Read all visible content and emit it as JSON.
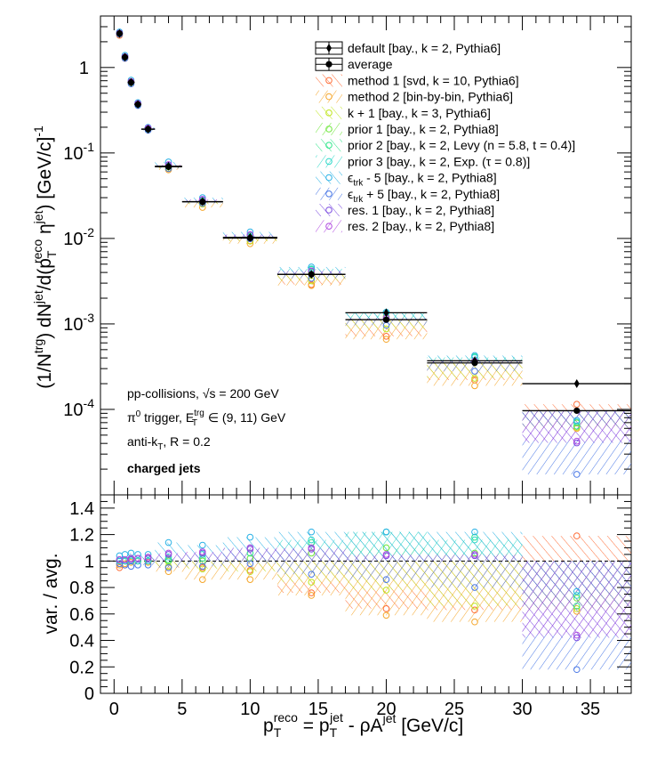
{
  "chart_data": [
    {
      "type": "scatter",
      "panel": "top",
      "y_scale": "log",
      "xlim": [
        -1,
        38
      ],
      "ylim": [
        1e-05,
        4
      ],
      "y_ticks": [
        {
          "v": 1,
          "base": "1",
          "exp": ""
        },
        {
          "v": 0.1,
          "base": "10",
          "exp": "-1"
        },
        {
          "v": 0.01,
          "base": "10",
          "exp": "-2"
        },
        {
          "v": 0.001,
          "base": "10",
          "exp": "-3"
        },
        {
          "v": 0.0001,
          "base": "10",
          "exp": "-4"
        }
      ],
      "ylabel": {
        "p1": "(1/N",
        "s1": "trg",
        "p2": ") dN",
        "s2": "jet",
        "p3": "/d(p",
        "sub1": "T",
        "sup3": "reco",
        "p4": " η",
        "sup4": "jet",
        "p5": ") [GeV/c]",
        "sup5": "-1"
      },
      "info": {
        "line1": "pp-collisions, √s = 200 GeV",
        "line2_pre": "π",
        "line2_sup": "0",
        "line2_mid": " trigger, E",
        "line2_sup2": "trg",
        "line2_sub2": "T",
        "line2_post": " ∈ (9, 11) GeV",
        "line3_pre": "anti-k",
        "line3_sub": "T",
        "line3_post": ", R = 0.2",
        "line4": "charged jets"
      },
      "legend": [
        {
          "pre": "default [bay., k = 2, Pythia6]",
          "style": "default",
          "color": "#000000"
        },
        {
          "pre": "average",
          "style": "average",
          "color": "#000000"
        },
        {
          "pre": "method 1 [svd, k = 10, Pythia6]",
          "style": "hatch",
          "color": "#ff6f3a"
        },
        {
          "pre": "method 2 [bin-by-bin, Pythia6]",
          "style": "hatch",
          "color": "#f5a62a"
        },
        {
          "pre": "k + 1 [bay., k = 3, Pythia6]",
          "style": "hatch",
          "color": "#bfe61e"
        },
        {
          "pre": "prior 1 [bay., k = 2, Pythia8]",
          "style": "hatch",
          "color": "#6ee63a"
        },
        {
          "pre": "prior 2 [bay., k = 2, Levy (n = 5.8, t = 0.4)]",
          "style": "hatch",
          "color": "#2ee68a"
        },
        {
          "pre": "prior 3 [bay., k = 2, Exp. (τ = 0.8)]",
          "style": "hatch",
          "color": "#2ed8c8"
        },
        {
          "pre": "ϵ",
          "sub": "trk",
          "post": " - 5 [bay., k = 2, Pythia8]",
          "style": "hatch",
          "color": "#2ab2e6"
        },
        {
          "pre": "ϵ",
          "sub": "trk",
          "post": " + 5 [bay., k = 2, Pythia8]",
          "style": "hatch",
          "color": "#4a78e6"
        },
        {
          "pre": "res. 1 [bay., k = 2, Pythia8]",
          "style": "hatch",
          "color": "#7a4ae0"
        },
        {
          "pre": "res. 2 [bay., k = 2, Pythia8]",
          "style": "hatch",
          "color": "#b04ae0"
        }
      ],
      "bins": [
        {
          "x": 0.4,
          "xlo": 0.2,
          "xhi": 0.6,
          "default": 2.5,
          "average": 2.5
        },
        {
          "x": 0.8,
          "xlo": 0.6,
          "xhi": 1.0,
          "default": 1.32,
          "average": 1.32
        },
        {
          "x": 1.25,
          "xlo": 1.0,
          "xhi": 1.5,
          "default": 0.67,
          "average": 0.67
        },
        {
          "x": 1.75,
          "xlo": 1.5,
          "xhi": 2.0,
          "default": 0.37,
          "average": 0.37
        },
        {
          "x": 2.5,
          "xlo": 2.0,
          "xhi": 3.0,
          "default": 0.19,
          "average": 0.19
        },
        {
          "x": 4.0,
          "xlo": 3.0,
          "xhi": 5.0,
          "default": 0.07,
          "average": 0.069
        },
        {
          "x": 6.5,
          "xlo": 5.0,
          "xhi": 8.0,
          "default": 0.027,
          "average": 0.0268
        },
        {
          "x": 10.0,
          "xlo": 8.0,
          "xhi": 12.0,
          "default": 0.0103,
          "average": 0.0101
        },
        {
          "x": 14.5,
          "xlo": 12.0,
          "xhi": 17.0,
          "default": 0.0038,
          "average": 0.0038
        },
        {
          "x": 20.0,
          "xlo": 17.0,
          "xhi": 23.0,
          "default": 0.00135,
          "average": 0.00112
        },
        {
          "x": 26.5,
          "xlo": 23.0,
          "xhi": 30.0,
          "default": 0.00037,
          "average": 0.00035
        },
        {
          "x": 34.0,
          "xlo": 30.0,
          "xhi": 38.0,
          "default": 0.0002,
          "average": 9.65e-05
        }
      ]
    },
    {
      "type": "scatter",
      "panel": "ratio",
      "xlim": [
        -1,
        38
      ],
      "ylim": [
        0,
        1.5
      ],
      "x_ticks": [
        0,
        5,
        10,
        15,
        20,
        25,
        30,
        35
      ],
      "y_ticks": [
        "0",
        "0.2",
        "0.4",
        "0.6",
        "0.8",
        "1",
        "1.2",
        "1.4"
      ],
      "ylabel": "var. / avg.",
      "reference_line": 1,
      "xlabel": {
        "p1": "p",
        "sub1": "T",
        "sup1": "reco",
        "p2": " = p",
        "sub2": "T",
        "sup2": "jet",
        "p3": " - ρA",
        "sup3": "jet",
        "p4": " [GeV/c]"
      },
      "series": [
        {
          "name": "method 1 [svd, k = 10, Pythia6]",
          "color": "#ff6f3a",
          "values": [
            0.95,
            0.97,
            1.02,
            1.0,
            1.02,
            0.95,
            0.95,
            0.93,
            0.76,
            0.64,
            0.63,
            1.19
          ]
        },
        {
          "name": "method 2 [bin-by-bin, Pythia6]",
          "color": "#f5a62a",
          "values": [
            0.97,
            0.98,
            0.99,
            1.0,
            0.99,
            0.92,
            0.86,
            0.86,
            0.74,
            0.59,
            0.54,
            0.62
          ]
        },
        {
          "name": "k + 1 [bay., k = 3, Pythia6]",
          "color": "#bfe61e",
          "values": [
            1.0,
            1.0,
            1.0,
            1.0,
            1.0,
            0.96,
            0.94,
            0.92,
            0.84,
            0.78,
            0.66,
            0.64
          ]
        },
        {
          "name": "prior 1 [bay., k = 2, Pythia8]",
          "color": "#6ee63a",
          "values": [
            1.0,
            1.0,
            1.0,
            1.0,
            1.0,
            1.0,
            1.0,
            1.02,
            1.06,
            1.1,
            1.06,
            0.72
          ]
        },
        {
          "name": "prior 2 [bay., k = 2, Levy (n = 5.8, t = 0.4)]",
          "color": "#2ee68a",
          "values": [
            1.0,
            1.0,
            1.0,
            1.0,
            1.0,
            1.01,
            1.02,
            1.06,
            1.14,
            1.22,
            1.18,
            0.66
          ]
        },
        {
          "name": "prior 3 [bay., k = 2, Exp. (τ = 0.8)]",
          "color": "#2ed8c8",
          "values": [
            1.0,
            1.0,
            1.0,
            1.0,
            1.0,
            1.03,
            1.05,
            1.1,
            1.16,
            1.22,
            1.16,
            0.74
          ]
        },
        {
          "name": "ϵtrk - 5 [bay., k = 2, Pythia8]",
          "color": "#2ab2e6",
          "values": [
            1.04,
            1.05,
            1.06,
            1.05,
            1.05,
            1.14,
            1.12,
            1.18,
            1.22,
            1.22,
            1.22,
            0.77
          ]
        },
        {
          "name": "ϵtrk + 5 [bay., k = 2, Pythia8]",
          "color": "#4a78e6",
          "values": [
            0.98,
            0.97,
            0.96,
            0.97,
            0.97,
            0.95,
            0.96,
            0.98,
            0.9,
            0.86,
            0.8,
            0.18
          ]
        },
        {
          "name": "res. 1 [bay., k = 2, Pythia8]",
          "color": "#7a4ae0",
          "values": [
            1.01,
            1.01,
            1.01,
            1.02,
            1.02,
            1.05,
            1.06,
            1.09,
            1.09,
            1.04,
            1.04,
            0.42
          ]
        },
        {
          "name": "res. 2 [bay., k = 2, Pythia8]",
          "color": "#b04ae0",
          "values": [
            1.01,
            1.01,
            1.02,
            1.02,
            1.03,
            1.06,
            1.07,
            1.1,
            1.1,
            1.05,
            1.05,
            0.44
          ]
        }
      ]
    }
  ]
}
